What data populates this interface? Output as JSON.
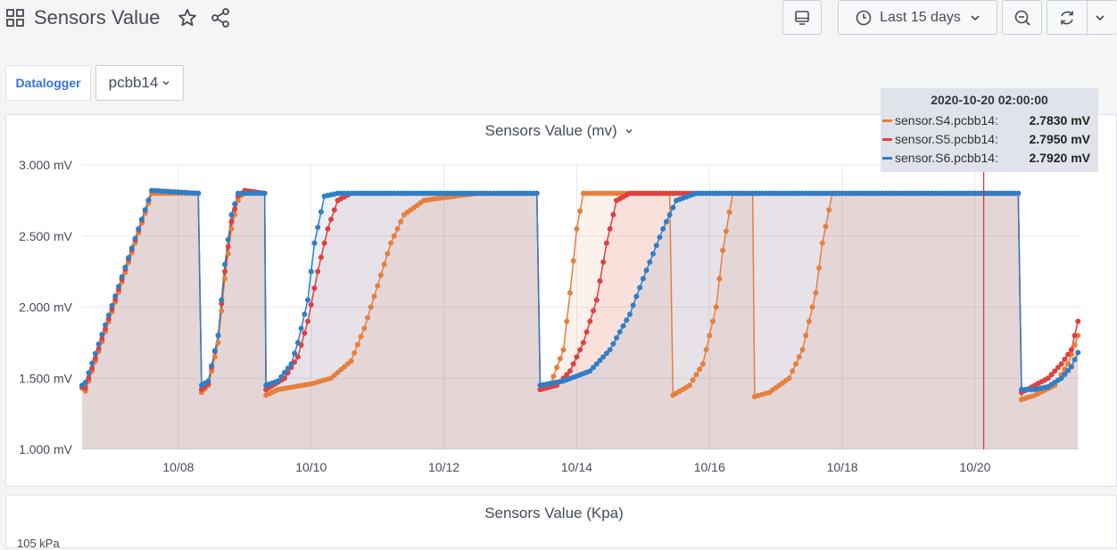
{
  "header": {
    "title": "Sensors Value",
    "time_range": "Last 15 days"
  },
  "variables": {
    "label": "Datalogger",
    "value": "pcbb14"
  },
  "panel1": {
    "title": "Sensors Value (mv)"
  },
  "panel2": {
    "title": "Sensors Value (Kpa)",
    "partial_y_label": "105 kPa"
  },
  "tooltip": {
    "time": "2020-10-20 02:00:00",
    "rows": [
      {
        "name": "sensor.S4.pcbb14:",
        "value": "2.7830 mV",
        "color": "#e5803d"
      },
      {
        "name": "sensor.S5.pcbb14:",
        "value": "2.7950 mV",
        "color": "#e04040"
      },
      {
        "name": "sensor.S6.pcbb14:",
        "value": "2.7920 mV",
        "color": "#2e7fc7"
      }
    ]
  },
  "colors": {
    "s4": "#e5803d",
    "s5": "#e04040",
    "s6": "#2e7fc7",
    "crosshair": "#e02f44"
  },
  "icons": [
    "dashboard-grid-icon",
    "star-icon",
    "share-icon",
    "tv-mode-icon",
    "clock-icon",
    "chevron-down-icon",
    "zoom-out-icon",
    "refresh-icon"
  ],
  "chart_data": {
    "type": "line",
    "title": "Sensors Value (mv)",
    "y_tick_labels": [
      "1.000 mV",
      "1.500 mV",
      "2.000 mV",
      "2.500 mV",
      "3.000 mV"
    ],
    "y_ticks": [
      1.0,
      1.5,
      2.0,
      2.5,
      3.0
    ],
    "ylim": [
      1.0,
      3.0
    ],
    "x_tick_labels": [
      "10/08",
      "10/10",
      "10/12",
      "10/14",
      "10/16",
      "10/18",
      "10/20"
    ],
    "x_ticks": [
      8,
      10,
      12,
      14,
      16,
      18,
      20
    ],
    "xlim": [
      6.55,
      21.6
    ],
    "x_unit": "day of October 2020",
    "grid": true,
    "crosshair_x": 20.13,
    "series": [
      {
        "name": "sensor.S4.pcbb14",
        "points": [
          [
            6.55,
            1.43
          ],
          [
            6.6,
            1.41
          ],
          [
            7.6,
            2.8
          ],
          [
            8.3,
            2.8
          ],
          [
            8.35,
            1.4
          ],
          [
            8.45,
            1.45
          ],
          [
            8.6,
            1.75
          ],
          [
            8.7,
            2.2
          ],
          [
            8.8,
            2.55
          ],
          [
            8.9,
            2.75
          ],
          [
            9.0,
            2.82
          ],
          [
            9.3,
            2.8
          ],
          [
            9.32,
            1.38
          ],
          [
            9.5,
            1.42
          ],
          [
            10.0,
            1.46
          ],
          [
            10.3,
            1.5
          ],
          [
            10.6,
            1.62
          ],
          [
            10.8,
            1.85
          ],
          [
            11.0,
            2.15
          ],
          [
            11.2,
            2.45
          ],
          [
            11.4,
            2.65
          ],
          [
            11.7,
            2.75
          ],
          [
            12.0,
            2.77
          ],
          [
            12.5,
            2.8
          ],
          [
            13.4,
            2.8
          ],
          [
            13.45,
            1.42
          ],
          [
            13.6,
            1.45
          ],
          [
            13.8,
            1.7
          ],
          [
            13.9,
            2.1
          ],
          [
            14.0,
            2.55
          ],
          [
            14.1,
            2.8
          ],
          [
            15.4,
            2.8
          ],
          [
            15.45,
            1.38
          ],
          [
            15.7,
            1.45
          ],
          [
            15.9,
            1.6
          ],
          [
            16.1,
            2.0
          ],
          [
            16.2,
            2.4
          ],
          [
            16.35,
            2.8
          ],
          [
            16.65,
            2.8
          ],
          [
            16.68,
            1.37
          ],
          [
            16.9,
            1.4
          ],
          [
            17.2,
            1.5
          ],
          [
            17.4,
            1.7
          ],
          [
            17.6,
            2.1
          ],
          [
            17.7,
            2.45
          ],
          [
            17.85,
            2.8
          ],
          [
            20.65,
            2.8
          ],
          [
            20.7,
            1.35
          ],
          [
            20.9,
            1.38
          ],
          [
            21.2,
            1.45
          ],
          [
            21.4,
            1.6
          ],
          [
            21.55,
            1.8
          ]
        ]
      },
      {
        "name": "sensor.S5.pcbb14",
        "points": [
          [
            6.55,
            1.44
          ],
          [
            6.6,
            1.43
          ],
          [
            7.6,
            2.82
          ],
          [
            8.3,
            2.8
          ],
          [
            8.35,
            1.42
          ],
          [
            8.45,
            1.46
          ],
          [
            8.6,
            1.8
          ],
          [
            8.7,
            2.25
          ],
          [
            8.8,
            2.6
          ],
          [
            8.9,
            2.78
          ],
          [
            9.0,
            2.82
          ],
          [
            9.3,
            2.8
          ],
          [
            9.32,
            1.42
          ],
          [
            9.6,
            1.5
          ],
          [
            9.8,
            1.65
          ],
          [
            9.95,
            1.9
          ],
          [
            10.1,
            2.25
          ],
          [
            10.25,
            2.55
          ],
          [
            10.4,
            2.75
          ],
          [
            10.6,
            2.8
          ],
          [
            13.4,
            2.8
          ],
          [
            13.45,
            1.42
          ],
          [
            13.7,
            1.45
          ],
          [
            13.9,
            1.55
          ],
          [
            14.1,
            1.75
          ],
          [
            14.3,
            2.05
          ],
          [
            14.45,
            2.45
          ],
          [
            14.6,
            2.75
          ],
          [
            14.8,
            2.8
          ],
          [
            15.4,
            2.8
          ],
          [
            20.65,
            2.8
          ],
          [
            20.7,
            1.4
          ],
          [
            20.9,
            1.45
          ],
          [
            21.1,
            1.5
          ],
          [
            21.3,
            1.6
          ],
          [
            21.45,
            1.7
          ],
          [
            21.55,
            1.9
          ]
        ]
      },
      {
        "name": "sensor.S6.pcbb14",
        "points": [
          [
            6.55,
            1.45
          ],
          [
            6.6,
            1.47
          ],
          [
            7.6,
            2.82
          ],
          [
            8.3,
            2.8
          ],
          [
            8.35,
            1.45
          ],
          [
            8.45,
            1.48
          ],
          [
            8.6,
            1.8
          ],
          [
            8.7,
            2.3
          ],
          [
            8.8,
            2.65
          ],
          [
            8.9,
            2.8
          ],
          [
            9.3,
            2.8
          ],
          [
            9.32,
            1.45
          ],
          [
            9.5,
            1.48
          ],
          [
            9.7,
            1.6
          ],
          [
            9.8,
            1.75
          ],
          [
            9.95,
            2.05
          ],
          [
            10.05,
            2.45
          ],
          [
            10.2,
            2.78
          ],
          [
            10.4,
            2.8
          ],
          [
            13.4,
            2.8
          ],
          [
            13.45,
            1.45
          ],
          [
            13.8,
            1.48
          ],
          [
            14.2,
            1.55
          ],
          [
            14.5,
            1.7
          ],
          [
            14.8,
            1.95
          ],
          [
            15.0,
            2.2
          ],
          [
            15.3,
            2.55
          ],
          [
            15.5,
            2.75
          ],
          [
            15.8,
            2.8
          ],
          [
            20.65,
            2.8
          ],
          [
            20.7,
            1.42
          ],
          [
            20.9,
            1.42
          ],
          [
            21.1,
            1.44
          ],
          [
            21.3,
            1.5
          ],
          [
            21.45,
            1.58
          ],
          [
            21.55,
            1.68
          ]
        ]
      }
    ]
  }
}
